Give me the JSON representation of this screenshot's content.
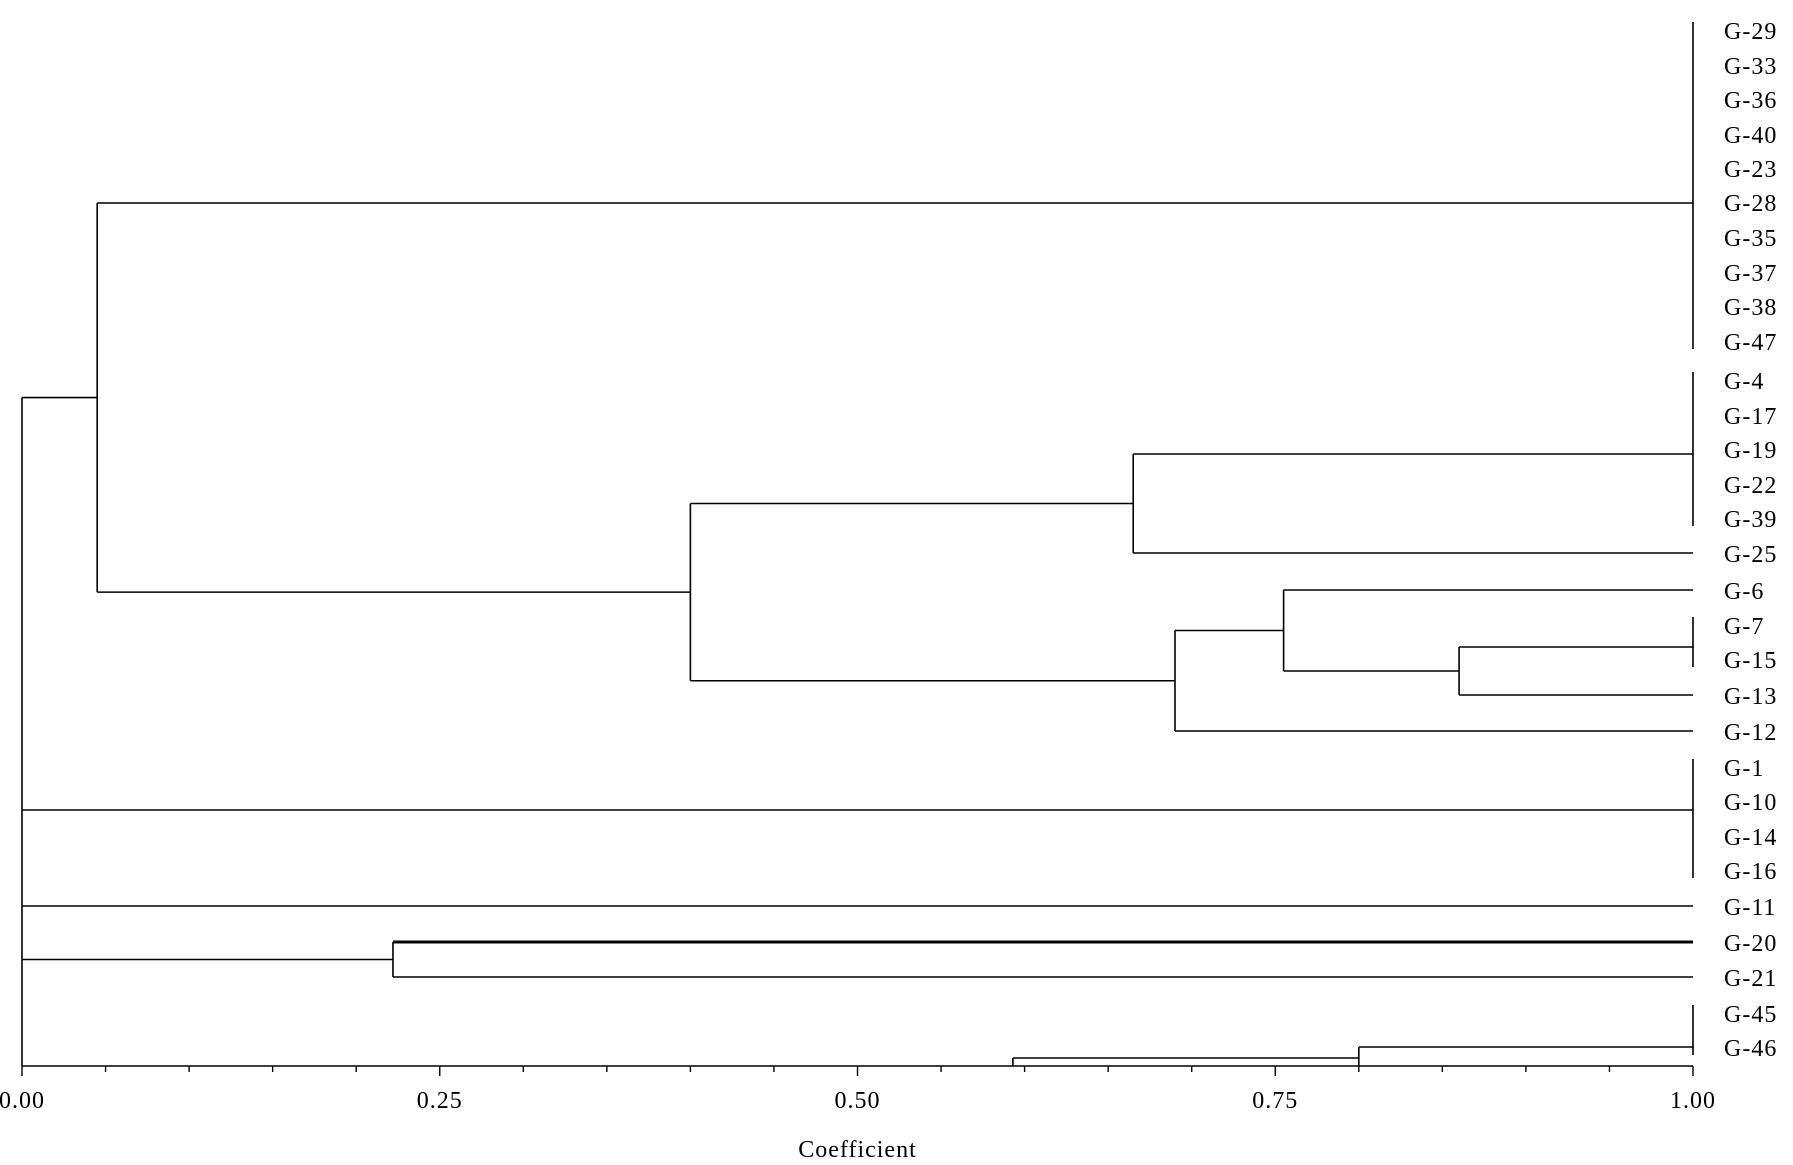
{
  "leaves": [
    "G-29",
    "G-33",
    "G-36",
    "G-40",
    "G-23",
    "G-28",
    "G-35",
    "G-37",
    "G-38",
    "G-47",
    "G-4",
    "G-17",
    "G-19",
    "G-22",
    "G-39",
    "G-25",
    "G-6",
    "G-7",
    "G-15",
    "G-13",
    "G-12",
    "G-1",
    "G-10",
    "G-14",
    "G-16",
    "G-11",
    "G-20",
    "G-21",
    "G-45",
    "G-46"
  ],
  "axis": {
    "title": "Coefficient",
    "min": 0,
    "max": 1,
    "major_ticks": [
      0,
      0.25,
      0.5,
      0.75,
      1
    ],
    "tick_labels": [
      "0.00",
      "0.25",
      "0.50",
      "0.75",
      "1.00"
    ],
    "minor_step": 0.05
  },
  "merges": [
    {
      "id": "A",
      "coef": 1.0,
      "members": [
        "G-29",
        "G-33",
        "G-36",
        "G-40",
        "G-23",
        "G-28",
        "G-35",
        "G-37",
        "G-38",
        "G-47"
      ]
    },
    {
      "id": "B",
      "coef": 1.0,
      "members": [
        "G-4",
        "G-17",
        "G-19",
        "G-22",
        "G-39"
      ]
    },
    {
      "id": "C",
      "coef": 1.0,
      "members": [
        "G-7",
        "G-15"
      ]
    },
    {
      "id": "D",
      "coef": 1.0,
      "members": [
        "G-1",
        "G-10",
        "G-14",
        "G-16"
      ]
    },
    {
      "id": "E",
      "coef": 1.0,
      "members": [
        "G-45",
        "G-46"
      ]
    },
    {
      "id": "F",
      "coef": 0.86,
      "members": [
        "C",
        "G-13"
      ]
    },
    {
      "id": "G",
      "coef": 0.755,
      "members": [
        "G-6",
        "F"
      ]
    },
    {
      "id": "H",
      "coef": 0.69,
      "members": [
        "G",
        "G-12"
      ]
    },
    {
      "id": "I",
      "coef": 0.665,
      "members": [
        "B",
        "G-25"
      ]
    },
    {
      "id": "J",
      "coef": 0.4,
      "members": [
        "I",
        "H"
      ]
    },
    {
      "id": "K",
      "coef": 0.045,
      "members": [
        "A",
        "J"
      ]
    },
    {
      "id": "L",
      "coef": 0.222,
      "members": [
        "G-20",
        "G-21"
      ]
    },
    {
      "id": "M",
      "coef": 0.8,
      "members": [
        "E"
      ]
    },
    {
      "id": "N",
      "coef": 0.593,
      "members": [
        "M"
      ]
    },
    {
      "id": "ROOT",
      "coef": 0.0,
      "members": [
        "K",
        "D",
        "G-11",
        "L",
        "N"
      ]
    }
  ]
}
